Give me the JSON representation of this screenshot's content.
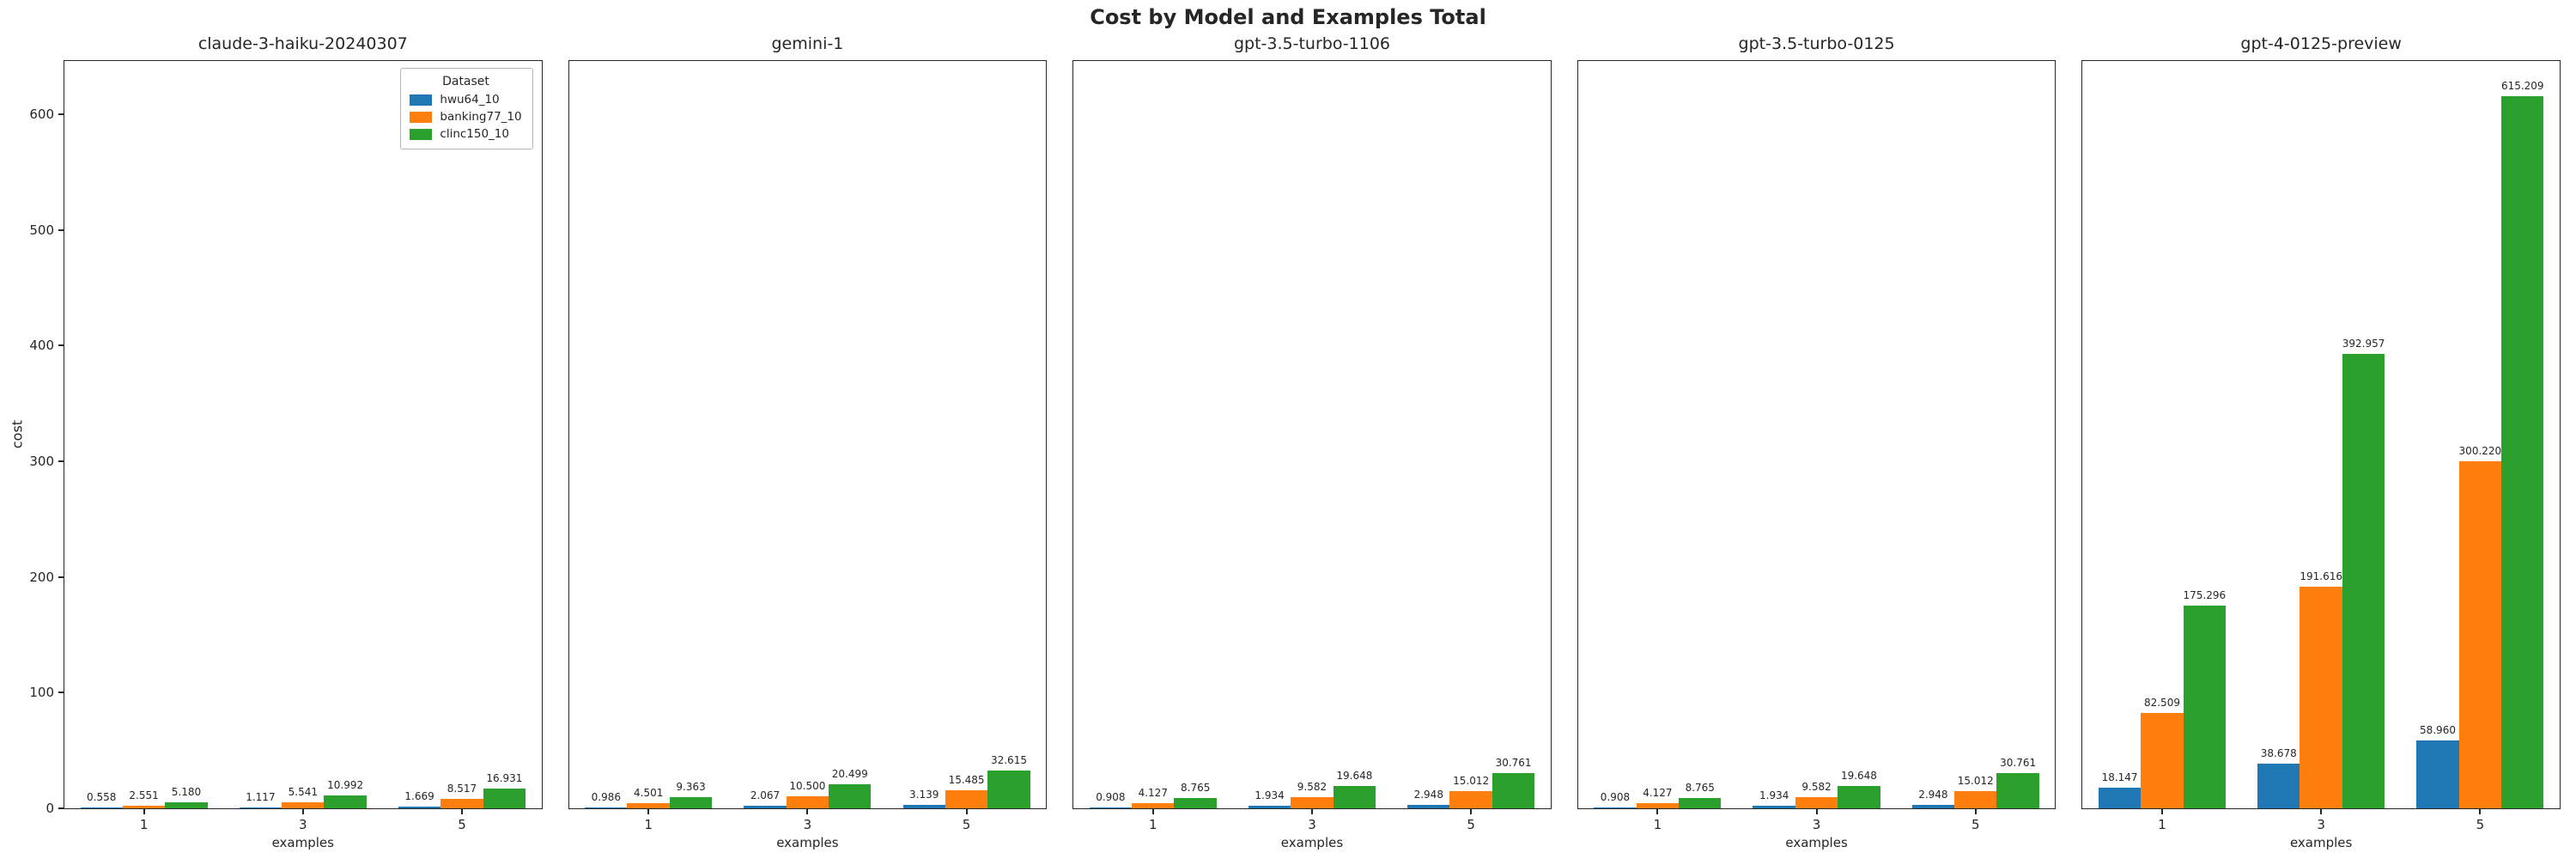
{
  "chart_data": {
    "type": "bar",
    "title": "Cost by Model and Examples Total",
    "xlabel": "examples",
    "ylabel": "cost",
    "ylim": [
      0,
      646
    ],
    "yticks": [
      0,
      100,
      200,
      300,
      400,
      500,
      600
    ],
    "categories": [
      "1",
      "3",
      "5"
    ],
    "grid": false,
    "legend_title": "Dataset",
    "legend_position": "upper right of first subplot",
    "datasets": [
      {
        "name": "hwu64_10",
        "color": "#1f77b4"
      },
      {
        "name": "banking77_10",
        "color": "#ff7f0e"
      },
      {
        "name": "clinc150_10",
        "color": "#2ca02c"
      }
    ],
    "subplots": [
      {
        "title": "claude-3-haiku-20240307",
        "series": [
          {
            "name": "hwu64_10",
            "values": [
              0.558,
              1.117,
              1.669
            ]
          },
          {
            "name": "banking77_10",
            "values": [
              2.551,
              5.541,
              8.517
            ]
          },
          {
            "name": "clinc150_10",
            "values": [
              5.18,
              10.992,
              16.931
            ]
          }
        ]
      },
      {
        "title": "gemini-1",
        "series": [
          {
            "name": "hwu64_10",
            "values": [
              0.986,
              2.067,
              3.139
            ]
          },
          {
            "name": "banking77_10",
            "values": [
              4.501,
              10.5,
              15.485
            ]
          },
          {
            "name": "clinc150_10",
            "values": [
              9.363,
              20.499,
              32.615
            ]
          }
        ]
      },
      {
        "title": "gpt-3.5-turbo-1106",
        "series": [
          {
            "name": "hwu64_10",
            "values": [
              0.908,
              1.934,
              2.948
            ]
          },
          {
            "name": "banking77_10",
            "values": [
              4.127,
              9.582,
              15.012
            ]
          },
          {
            "name": "clinc150_10",
            "values": [
              8.765,
              19.648,
              30.761
            ]
          }
        ]
      },
      {
        "title": "gpt-3.5-turbo-0125",
        "series": [
          {
            "name": "hwu64_10",
            "values": [
              0.908,
              1.934,
              2.948
            ]
          },
          {
            "name": "banking77_10",
            "values": [
              4.127,
              9.582,
              15.012
            ]
          },
          {
            "name": "clinc150_10",
            "values": [
              8.765,
              19.648,
              30.761
            ]
          }
        ]
      },
      {
        "title": "gpt-4-0125-preview",
        "series": [
          {
            "name": "hwu64_10",
            "values": [
              18.147,
              38.678,
              58.96
            ]
          },
          {
            "name": "banking77_10",
            "values": [
              82.509,
              191.616,
              300.22
            ]
          },
          {
            "name": "clinc150_10",
            "values": [
              175.296,
              392.957,
              615.209
            ]
          }
        ]
      }
    ]
  }
}
